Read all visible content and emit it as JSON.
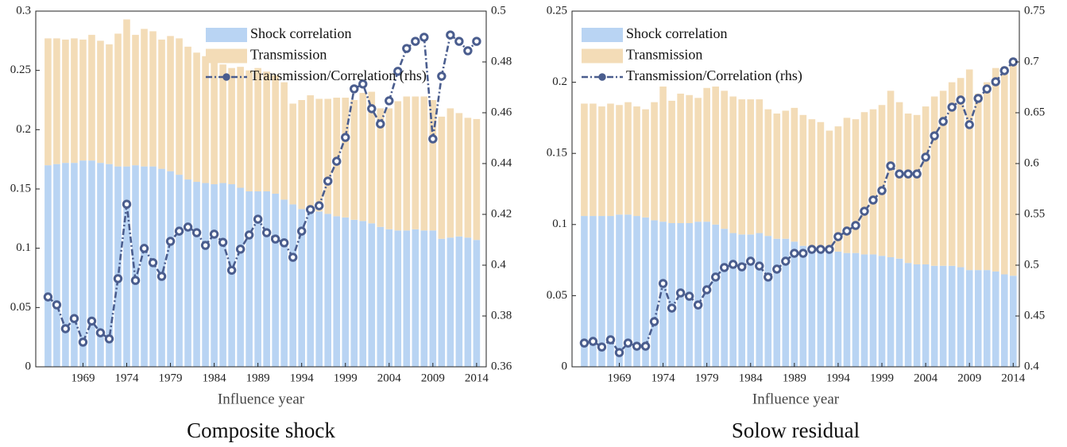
{
  "chart_data": [
    {
      "type": "bar",
      "stacked": true,
      "title": "Composite shock",
      "xlabel": "Influence year",
      "legend": "upper right",
      "x": [
        1965,
        1966,
        1967,
        1968,
        1969,
        1970,
        1971,
        1972,
        1973,
        1974,
        1975,
        1976,
        1977,
        1978,
        1979,
        1980,
        1981,
        1982,
        1983,
        1984,
        1985,
        1986,
        1987,
        1988,
        1989,
        1990,
        1991,
        1992,
        1993,
        1994,
        1995,
        1996,
        1997,
        1998,
        1999,
        2000,
        2001,
        2002,
        2003,
        2004,
        2005,
        2006,
        2007,
        2008,
        2009,
        2010,
        2011,
        2012,
        2013,
        2014
      ],
      "xlim": [
        1963.6,
        2015.1
      ],
      "xticks": [
        1969,
        1974,
        1979,
        1984,
        1989,
        1994,
        1999,
        2004,
        2009,
        2014
      ],
      "ylim": [
        0,
        0.3
      ],
      "yticks": [
        0,
        0.05,
        0.1,
        0.15,
        0.2,
        0.25,
        0.3
      ],
      "y2lim": [
        0.36,
        0.5
      ],
      "y2ticks": [
        0.36,
        0.38,
        0.4,
        0.42,
        0.44,
        0.46,
        0.48,
        0.5
      ],
      "series": [
        {
          "name": "Shock correlation",
          "color": "#b9d4f3",
          "values": [
            0.17,
            0.171,
            0.172,
            0.172,
            0.174,
            0.174,
            0.172,
            0.171,
            0.169,
            0.169,
            0.17,
            0.169,
            0.169,
            0.167,
            0.165,
            0.162,
            0.158,
            0.156,
            0.155,
            0.154,
            0.155,
            0.154,
            0.151,
            0.148,
            0.148,
            0.148,
            0.146,
            0.141,
            0.137,
            0.133,
            0.131,
            0.131,
            0.129,
            0.127,
            0.126,
            0.124,
            0.123,
            0.121,
            0.118,
            0.116,
            0.115,
            0.115,
            0.116,
            0.115,
            0.115,
            0.108,
            0.109,
            0.11,
            0.109,
            0.107
          ]
        },
        {
          "name": "Transmission",
          "color": "#f3dcb7",
          "values": [
            0.107,
            0.106,
            0.104,
            0.105,
            0.102,
            0.106,
            0.103,
            0.101,
            0.112,
            0.124,
            0.11,
            0.116,
            0.114,
            0.109,
            0.114,
            0.115,
            0.112,
            0.109,
            0.107,
            0.104,
            0.1,
            0.098,
            0.102,
            0.102,
            0.104,
            0.101,
            0.1,
            0.099,
            0.085,
            0.092,
            0.098,
            0.095,
            0.097,
            0.1,
            0.101,
            0.101,
            0.108,
            0.111,
            0.1,
            0.102,
            0.109,
            0.113,
            0.112,
            0.113,
            0.11,
            0.103,
            0.109,
            0.104,
            0.101,
            0.102
          ]
        },
        {
          "name": "Transmission/Correlation (rhs)",
          "color": "#4a5d8e",
          "type": "line",
          "axis": "y2",
          "values": [
            0.3875,
            0.3844,
            0.375,
            0.379,
            0.3697,
            0.378,
            0.3734,
            0.371,
            0.3947,
            0.424,
            0.394,
            0.4066,
            0.401,
            0.3956,
            0.4094,
            0.4134,
            0.415,
            0.4128,
            0.4078,
            0.4122,
            0.409,
            0.398,
            0.4063,
            0.4119,
            0.4181,
            0.4128,
            0.4103,
            0.4088,
            0.4031,
            0.4134,
            0.4219,
            0.4234,
            0.4331,
            0.4409,
            0.4503,
            0.4694,
            0.4713,
            0.4616,
            0.4556,
            0.4647,
            0.4763,
            0.4853,
            0.4881,
            0.4897,
            0.4497,
            0.4744,
            0.4906,
            0.4881,
            0.4844,
            0.4881
          ]
        }
      ]
    },
    {
      "type": "bar",
      "stacked": true,
      "title": "Solow residual",
      "xlabel": "Influence year",
      "legend": "upper left",
      "x": [
        1965,
        1966,
        1967,
        1968,
        1969,
        1970,
        1971,
        1972,
        1973,
        1974,
        1975,
        1976,
        1977,
        1978,
        1979,
        1980,
        1981,
        1982,
        1983,
        1984,
        1985,
        1986,
        1987,
        1988,
        1989,
        1990,
        1991,
        1992,
        1993,
        1994,
        1995,
        1996,
        1997,
        1998,
        1999,
        2000,
        2001,
        2002,
        2003,
        2004,
        2005,
        2006,
        2007,
        2008,
        2009,
        2010,
        2011,
        2012,
        2013,
        2014
      ],
      "xlim": [
        1963.6,
        2014.7
      ],
      "xticks": [
        1969,
        1974,
        1979,
        1984,
        1989,
        1994,
        1999,
        2004,
        2009,
        2014
      ],
      "ylim": [
        0,
        0.25
      ],
      "yticks": [
        0,
        0.05,
        0.1,
        0.15,
        0.2,
        0.25
      ],
      "y2lim": [
        0.4,
        0.75
      ],
      "y2ticks": [
        0.4,
        0.45,
        0.5,
        0.55,
        0.6,
        0.65,
        0.7,
        0.75
      ],
      "series": [
        {
          "name": "Shock correlation",
          "color": "#b9d4f3",
          "values": [
            0.106,
            0.106,
            0.106,
            0.106,
            0.107,
            0.107,
            0.106,
            0.105,
            0.103,
            0.102,
            0.101,
            0.101,
            0.101,
            0.102,
            0.102,
            0.1,
            0.097,
            0.094,
            0.093,
            0.093,
            0.094,
            0.092,
            0.09,
            0.09,
            0.088,
            0.085,
            0.083,
            0.081,
            0.081,
            0.081,
            0.08,
            0.08,
            0.079,
            0.079,
            0.078,
            0.077,
            0.076,
            0.073,
            0.072,
            0.072,
            0.071,
            0.071,
            0.071,
            0.07,
            0.068,
            0.068,
            0.068,
            0.067,
            0.065,
            0.064
          ]
        },
        {
          "name": "Transmission",
          "color": "#f3dcb7",
          "values": [
            0.079,
            0.079,
            0.077,
            0.079,
            0.077,
            0.079,
            0.077,
            0.076,
            0.083,
            0.095,
            0.086,
            0.091,
            0.09,
            0.087,
            0.094,
            0.097,
            0.097,
            0.096,
            0.095,
            0.095,
            0.094,
            0.089,
            0.088,
            0.09,
            0.094,
            0.092,
            0.091,
            0.091,
            0.085,
            0.088,
            0.095,
            0.094,
            0.1,
            0.102,
            0.106,
            0.117,
            0.11,
            0.105,
            0.105,
            0.111,
            0.119,
            0.123,
            0.129,
            0.133,
            0.141,
            0.124,
            0.132,
            0.143,
            0.146,
            0.153
          ]
        },
        {
          "name": "Transmission/Correlation (rhs)",
          "color": "#4a5d8e",
          "type": "line",
          "axis": "y2",
          "values": [
            0.4234,
            0.425,
            0.4195,
            0.4266,
            0.414,
            0.4234,
            0.4203,
            0.4203,
            0.4445,
            0.482,
            0.4578,
            0.4727,
            0.4695,
            0.4609,
            0.4758,
            0.4883,
            0.4977,
            0.5008,
            0.4984,
            0.5039,
            0.4992,
            0.4883,
            0.4961,
            0.5039,
            0.5117,
            0.5117,
            0.5156,
            0.5156,
            0.5156,
            0.5281,
            0.5336,
            0.5391,
            0.5531,
            0.5641,
            0.5734,
            0.5977,
            0.5898,
            0.5898,
            0.5898,
            0.6063,
            0.6273,
            0.6414,
            0.6555,
            0.6625,
            0.6383,
            0.6641,
            0.6734,
            0.6805,
            0.6914,
            0.7
          ]
        }
      ]
    }
  ]
}
